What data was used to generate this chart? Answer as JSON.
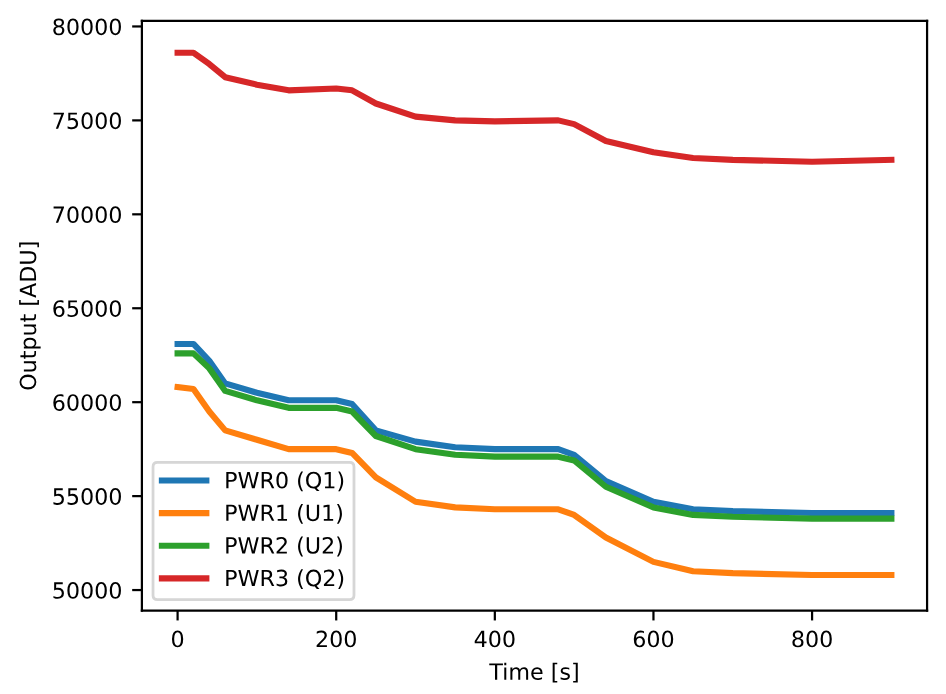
{
  "chart_data": {
    "type": "line",
    "xlabel": "Time [s]",
    "ylabel": "Output [ADU]",
    "xlim": [
      -45,
      945
    ],
    "xticks": [
      0,
      200,
      400,
      600,
      800
    ],
    "ylim": [
      48900,
      80300
    ],
    "yticks": [
      50000,
      55000,
      60000,
      65000,
      70000,
      75000,
      80000
    ],
    "grid": false,
    "legend": "bottom left",
    "line_style": "solid",
    "marker": "none",
    "x": [
      0,
      20,
      40,
      60,
      100,
      140,
      200,
      220,
      250,
      300,
      350,
      400,
      480,
      500,
      540,
      600,
      650,
      700,
      800,
      900
    ],
    "series": [
      {
        "name": "PWR0 (Q1)",
        "color": "#1f77b4",
        "values": [
          63100,
          63100,
          62200,
          61000,
          60500,
          60100,
          60100,
          59900,
          58500,
          57900,
          57600,
          57500,
          57500,
          57200,
          55800,
          54700,
          54300,
          54200,
          54100,
          54100
        ]
      },
      {
        "name": "PWR1 (U1)",
        "color": "#ff7f0e",
        "values": [
          60800,
          60700,
          59500,
          58500,
          58000,
          57500,
          57500,
          57300,
          56000,
          54700,
          54400,
          54300,
          54300,
          54000,
          52800,
          51500,
          51000,
          50900,
          50800,
          50800
        ]
      },
      {
        "name": "PWR2 (U2)",
        "color": "#2ca02c",
        "values": [
          62600,
          62600,
          61800,
          60600,
          60100,
          59700,
          59700,
          59500,
          58200,
          57500,
          57200,
          57100,
          57100,
          56900,
          55500,
          54400,
          54000,
          53900,
          53800,
          53800
        ]
      },
      {
        "name": "PWR3 (Q2)",
        "color": "#d62728",
        "values": [
          78600,
          78600,
          78000,
          77300,
          76900,
          76600,
          76700,
          76600,
          75900,
          75200,
          75000,
          74950,
          75000,
          74800,
          73900,
          73300,
          73000,
          72900,
          72800,
          72900
        ]
      }
    ]
  }
}
